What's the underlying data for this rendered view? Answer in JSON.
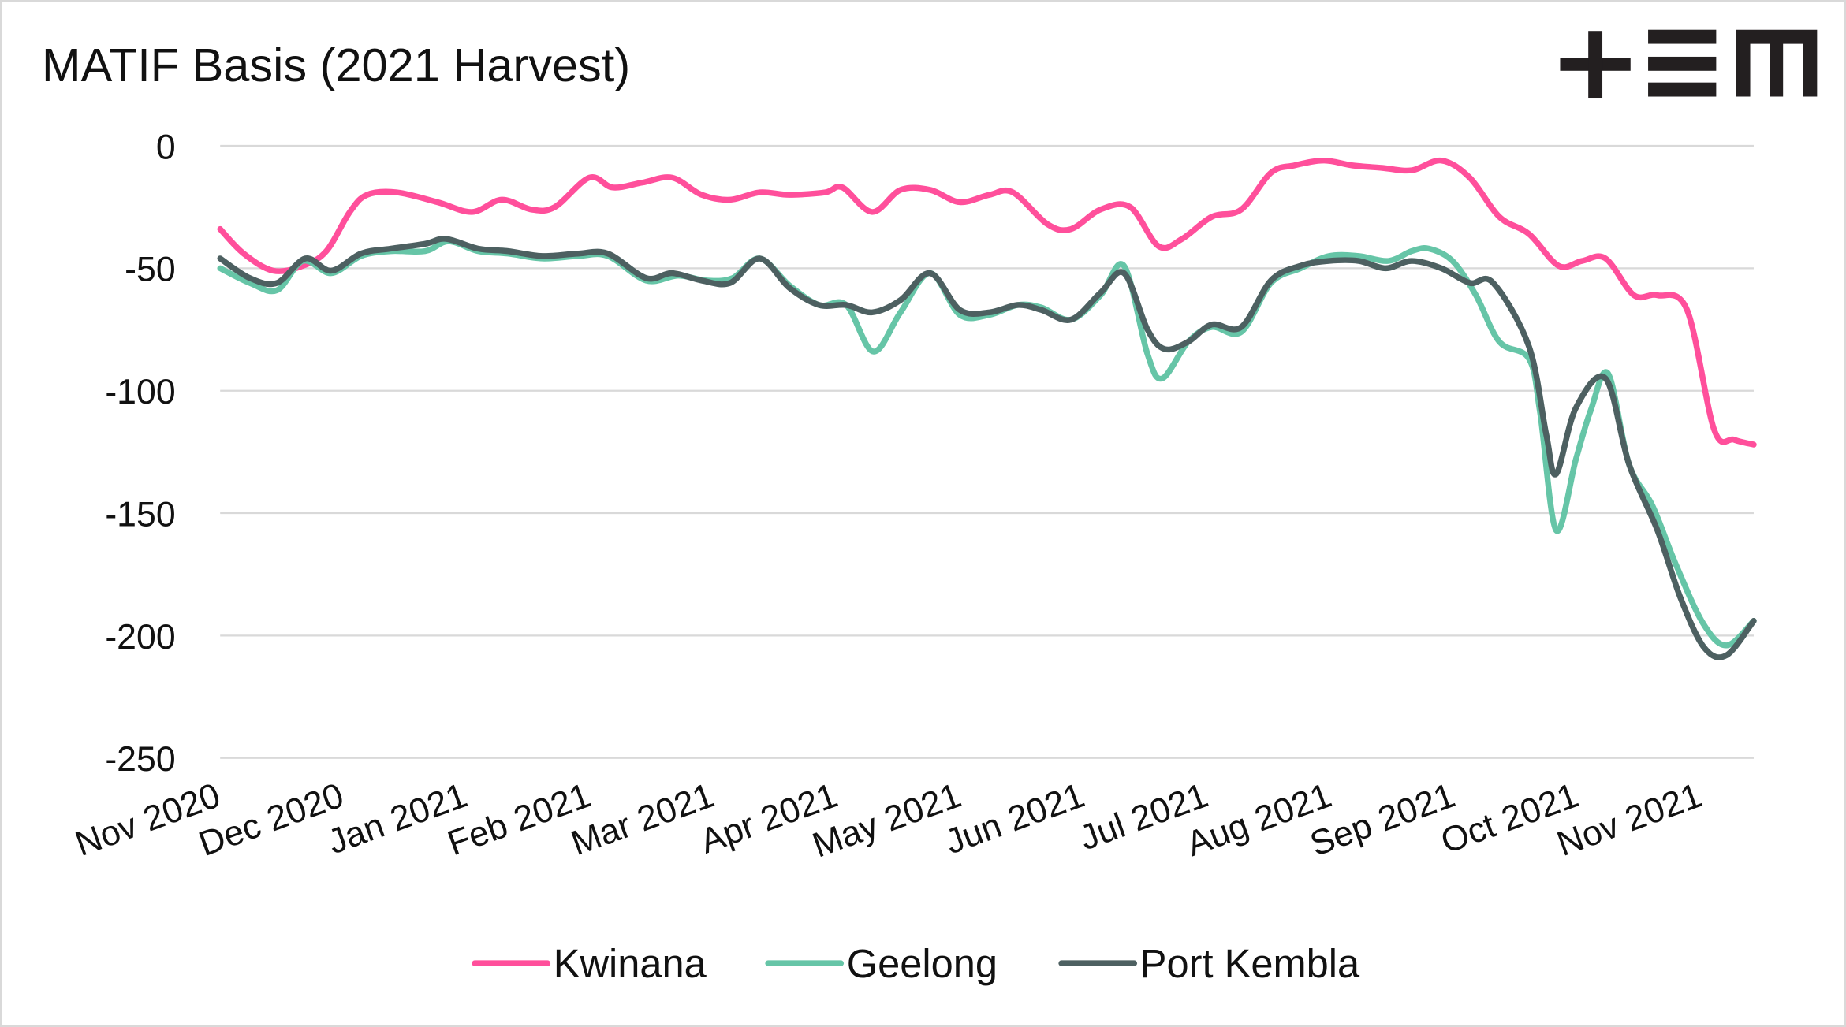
{
  "chart_data": {
    "type": "line",
    "title": "MATIF Basis (2021 Harvest)",
    "xlabel": "",
    "ylabel": "",
    "ylim": [
      -250,
      0
    ],
    "yticks": [
      0,
      -50,
      -100,
      -150,
      -200,
      -250
    ],
    "grid": true,
    "x_unit": "months since Nov 2020",
    "xlim": [
      0,
      12.42
    ],
    "xtick_labels": [
      "Nov 2020",
      "Dec 2020",
      "Jan 2021",
      "Feb 2021",
      "Mar 2021",
      "Apr 2021",
      "May 2021",
      "Jun 2021",
      "Jul 2021",
      "Aug 2021",
      "Sep 2021",
      "Oct 2021",
      "Nov 2021"
    ],
    "legend_position": "bottom",
    "series": [
      {
        "name": "Kwinana",
        "color": "#FF4F9B",
        "x": [
          0,
          0.19,
          0.43,
          0.67,
          0.86,
          1.05,
          1.19,
          1.43,
          1.76,
          2.04,
          2.28,
          2.52,
          2.71,
          2.99,
          3.18,
          3.42,
          3.66,
          3.9,
          4.13,
          4.37,
          4.61,
          4.9,
          5.04,
          5.28,
          5.51,
          5.75,
          5.99,
          6.23,
          6.42,
          6.7,
          6.89,
          7.13,
          7.37,
          7.6,
          7.79,
          8.03,
          8.27,
          8.51,
          8.7,
          8.94,
          9.17,
          9.41,
          9.65,
          9.89,
          10.12,
          10.36,
          10.6,
          10.84,
          11.03,
          11.22,
          11.45,
          11.64,
          11.88,
          12.1,
          12.26,
          12.42
        ],
        "y": [
          -34,
          -44,
          -51,
          -49,
          -43,
          -27,
          -20,
          -19,
          -23,
          -27,
          -22,
          -26,
          -25,
          -13,
          -17,
          -15,
          -13,
          -20,
          -22,
          -19,
          -20,
          -19,
          -17,
          -27,
          -18,
          -18,
          -23,
          -20,
          -19,
          -32,
          -34,
          -26,
          -25,
          -41,
          -38,
          -29,
          -26,
          -11,
          -8,
          -6,
          -8,
          -9,
          -10,
          -6,
          -13,
          -29,
          -36,
          -49,
          -47,
          -46,
          -61,
          -61,
          -67,
          -116,
          -120,
          -122
        ]
      },
      {
        "name": "Geelong",
        "color": "#66C5A7",
        "x": [
          0,
          0.24,
          0.46,
          0.67,
          0.9,
          1.14,
          1.38,
          1.66,
          1.85,
          2.09,
          2.33,
          2.61,
          2.9,
          3.14,
          3.45,
          3.71,
          3.94,
          4.15,
          4.37,
          4.61,
          4.85,
          5.07,
          5.29,
          5.51,
          5.75,
          5.99,
          6.23,
          6.46,
          6.65,
          6.89,
          7.13,
          7.32,
          7.51,
          7.63,
          7.84,
          8.03,
          8.27,
          8.51,
          8.75,
          8.98,
          9.22,
          9.46,
          9.65,
          9.79,
          9.98,
          10.17,
          10.36,
          10.6,
          10.69,
          10.82,
          10.98,
          11.1,
          11.24,
          11.41,
          11.6,
          11.79,
          12.01,
          12.2,
          12.42
        ],
        "y": [
          -50,
          -56,
          -59,
          -47,
          -52,
          -45,
          -43,
          -43,
          -39,
          -43,
          -44,
          -46,
          -45,
          -45,
          -55,
          -53,
          -55,
          -54,
          -46,
          -57,
          -65,
          -65,
          -84,
          -68,
          -52,
          -69,
          -69,
          -65,
          -66,
          -71,
          -61,
          -49,
          -85,
          -95,
          -80,
          -74,
          -76,
          -56,
          -50,
          -45,
          -45,
          -47,
          -43,
          -42,
          -47,
          -61,
          -80,
          -87,
          -109,
          -157,
          -128,
          -108,
          -93,
          -130,
          -147,
          -171,
          -195,
          -204,
          -194
        ]
      },
      {
        "name": "Port Kembla",
        "color": "#4D6061",
        "x": [
          0,
          0.24,
          0.46,
          0.69,
          0.9,
          1.14,
          1.38,
          1.66,
          1.83,
          2.09,
          2.33,
          2.61,
          2.9,
          3.14,
          3.45,
          3.66,
          3.9,
          4.13,
          4.37,
          4.61,
          4.85,
          5.07,
          5.28,
          5.51,
          5.75,
          5.99,
          6.23,
          6.46,
          6.65,
          6.89,
          7.13,
          7.32,
          7.51,
          7.65,
          7.84,
          8.03,
          8.27,
          8.51,
          8.75,
          8.98,
          9.22,
          9.44,
          9.65,
          9.89,
          10.12,
          10.31,
          10.6,
          10.74,
          10.82,
          10.98,
          11.22,
          11.41,
          11.64,
          11.83,
          12.02,
          12.2,
          12.42
        ],
        "y": [
          -46,
          -54,
          -56,
          -46,
          -51,
          -44,
          -42,
          -40,
          -38,
          -42,
          -43,
          -45,
          -44,
          -44,
          -54,
          -52,
          -55,
          -56,
          -46,
          -58,
          -65,
          -65,
          -68,
          -63,
          -52,
          -67,
          -68,
          -65,
          -67,
          -71,
          -60,
          -52,
          -75,
          -83,
          -80,
          -73,
          -74,
          -55,
          -49,
          -47,
          -47,
          -50,
          -47,
          -50,
          -56,
          -56,
          -82,
          -118,
          -134,
          -107,
          -95,
          -130,
          -157,
          -185,
          -205,
          -208,
          -194
        ]
      }
    ]
  },
  "logo": {
    "text": "+EM"
  }
}
